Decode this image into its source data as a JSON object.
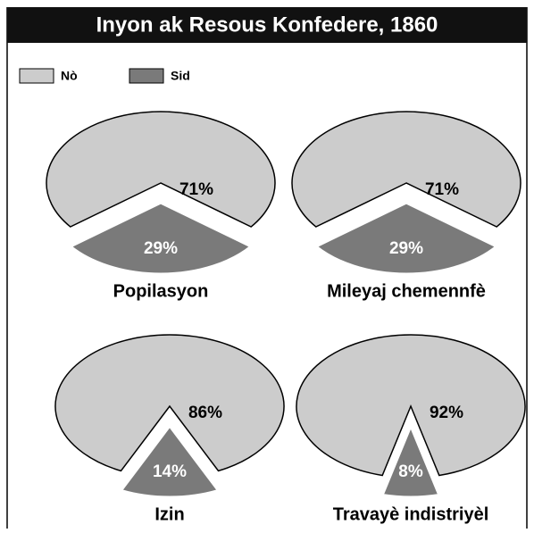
{
  "title": "Inyon ak Resous Konfedere, 1860",
  "chart_data": [
    {
      "type": "pie",
      "title": "Popilasyon",
      "categories": [
        "Nò",
        "Sid"
      ],
      "values": [
        71,
        29
      ],
      "value_labels": [
        "71%",
        "29%"
      ],
      "colors": [
        "#cccccc",
        "#7a7a7a"
      ]
    },
    {
      "type": "pie",
      "title": "Mileyaj chemennfè",
      "categories": [
        "Nò",
        "Sid"
      ],
      "values": [
        71,
        29
      ],
      "value_labels": [
        "71%",
        "29%"
      ],
      "colors": [
        "#cccccc",
        "#7a7a7a"
      ]
    },
    {
      "type": "pie",
      "title": "Izin",
      "categories": [
        "Nò",
        "Sid"
      ],
      "values": [
        86,
        14
      ],
      "value_labels": [
        "86%",
        "14%"
      ],
      "colors": [
        "#cccccc",
        "#7a7a7a"
      ]
    },
    {
      "type": "pie",
      "title": "Travayè indistriyèl",
      "categories": [
        "Nò",
        "Sid"
      ],
      "values": [
        92,
        8
      ],
      "value_labels": [
        "92%",
        "8%"
      ],
      "colors": [
        "#cccccc",
        "#7a7a7a"
      ]
    }
  ]
}
